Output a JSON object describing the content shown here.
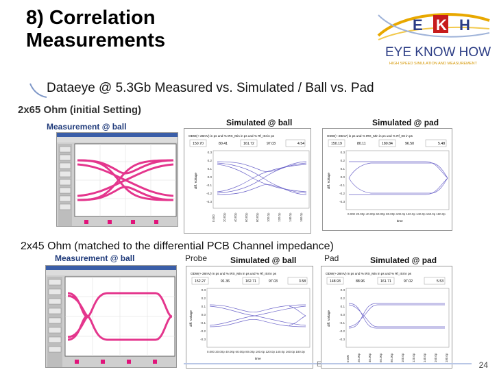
{
  "title_line1": "8) Correlation",
  "title_line2": "Measurements",
  "logo": {
    "brand": "EXKH",
    "name": "EYE KNOW HOW",
    "tagline": "HIGH SPEED SIMULATION AND MEASUREMENT"
  },
  "subtitle": "Dataeye @ 5.3Gb Measured vs. Simulated / Ball vs. Pad",
  "section1": {
    "heading": "2x65 Ohm (initial Setting)",
    "label_meas": "Measurement @ ball",
    "label_sim_ball": "Simulated @ ball",
    "label_sim_pad": "Simulated @ pad",
    "sim_ball": {
      "header": "ODW(+-28mV) in ps und %    tRX_Min in ps und %    Rf_ISI in ps",
      "v1": "150.70",
      "v2": "80.41",
      "v3": "161.72",
      "v4": "97.03",
      "v5": "4.54"
    },
    "sim_pad": {
      "header": "ODW(+-28mV) in ps und %    tRX_Min in ps und %    Rf_ISI in ps",
      "v1": "150.19",
      "v2": "80.11",
      "v3": "180.84",
      "v4": "96.50",
      "v5": "5.48"
    }
  },
  "section2": {
    "heading": "2x45 Ohm (matched to the differential PCB Channel impedance)",
    "label_meas": "Measurement @ ball",
    "label_probe": "Probe",
    "label_sim_ball": "Simulated @ ball",
    "label_pad": "Pad",
    "label_sim_pad": "Simulated @ pad",
    "sim_ball": {
      "header": "ODW(+-28mV) in ps und %    tRX_Min in ps und %    Rf_ISI in ps",
      "v1": "152.27",
      "v2": "91.36",
      "v3": "162.71",
      "v4": "97.03",
      "v5": "3.58"
    },
    "sim_pad": {
      "header": "ODW(+-28mV) in ps und %    tRX_Min in ps und %    Rf_ISI in ps",
      "v1": "148.93",
      "v2": "88.96",
      "v3": "161.71",
      "v4": "97.02",
      "v5": "5.53"
    }
  },
  "axis": {
    "ylabel": "diff. Voltage",
    "xlabel": "time",
    "yticks": [
      "0.3",
      "0.2",
      "0.1",
      "0.0",
      "-0.1",
      "-0.2",
      "-0.3"
    ],
    "xticks": [
      "0.000",
      "20.00p",
      "40.00p",
      "60.00p",
      "80.00p",
      "100.0p",
      "120.0p",
      "140.0p",
      "160.0p",
      "180.0p"
    ]
  },
  "page_number": "24",
  "footer_fragment": "E"
}
